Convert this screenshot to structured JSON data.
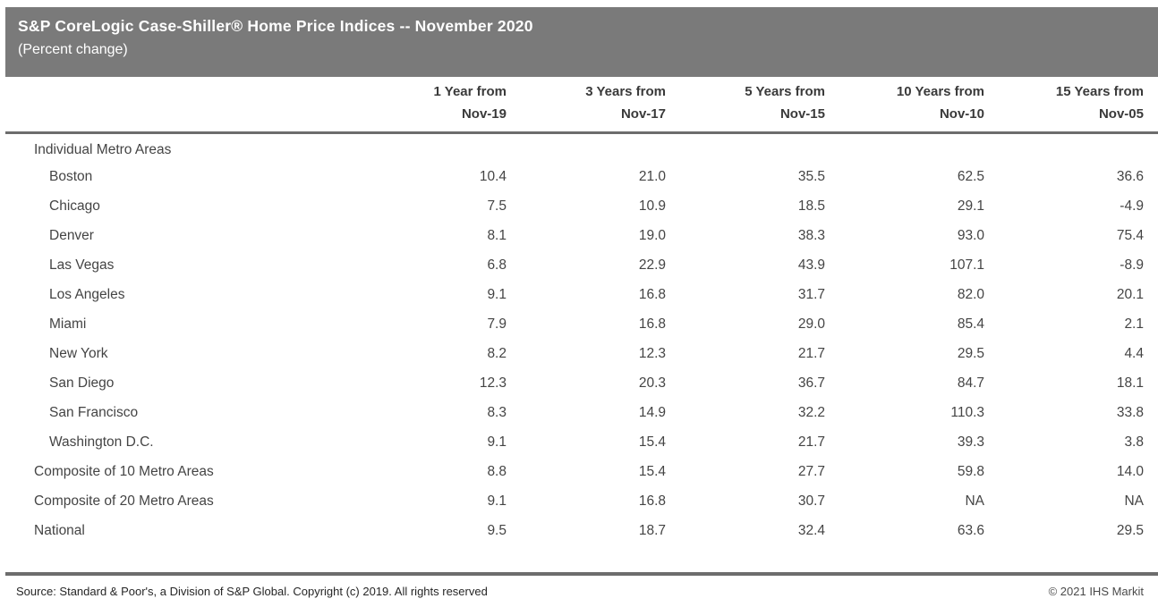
{
  "header": {
    "title": "S&P CoreLogic Case-Shiller® Home Price Indices -- November 2020",
    "subtitle": "(Percent change)"
  },
  "chart_data": {
    "type": "table",
    "title": "S&P CoreLogic Case-Shiller® Home Price Indices -- November 2020",
    "subtitle": "(Percent change)",
    "columns": [
      {
        "line1": "1 Year from",
        "line2": "Nov-19"
      },
      {
        "line1": "3 Years from",
        "line2": "Nov-17"
      },
      {
        "line1": "5 Years from",
        "line2": "Nov-15"
      },
      {
        "line1": "10 Years from",
        "line2": "Nov-10"
      },
      {
        "line1": "15 Years from",
        "line2": "Nov-05"
      }
    ],
    "rows": [
      {
        "label": "Individual Metro Areas",
        "heading": true,
        "indent": false,
        "values": null
      },
      {
        "label": "Boston",
        "heading": false,
        "indent": true,
        "values": [
          10.4,
          21.0,
          35.5,
          62.5,
          36.6
        ]
      },
      {
        "label": "Chicago",
        "heading": false,
        "indent": true,
        "values": [
          7.5,
          10.9,
          18.5,
          29.1,
          -4.9
        ]
      },
      {
        "label": "Denver",
        "heading": false,
        "indent": true,
        "values": [
          8.1,
          19.0,
          38.3,
          93.0,
          75.4
        ]
      },
      {
        "label": "Las Vegas",
        "heading": false,
        "indent": true,
        "values": [
          6.8,
          22.9,
          43.9,
          107.1,
          -8.9
        ]
      },
      {
        "label": "Los Angeles",
        "heading": false,
        "indent": true,
        "values": [
          9.1,
          16.8,
          31.7,
          82.0,
          20.1
        ]
      },
      {
        "label": "Miami",
        "heading": false,
        "indent": true,
        "values": [
          7.9,
          16.8,
          29.0,
          85.4,
          2.1
        ]
      },
      {
        "label": "New York",
        "heading": false,
        "indent": true,
        "values": [
          8.2,
          12.3,
          21.7,
          29.5,
          4.4
        ]
      },
      {
        "label": "San Diego",
        "heading": false,
        "indent": true,
        "values": [
          12.3,
          20.3,
          36.7,
          84.7,
          18.1
        ]
      },
      {
        "label": "San Francisco",
        "heading": false,
        "indent": true,
        "values": [
          8.3,
          14.9,
          32.2,
          110.3,
          33.8
        ]
      },
      {
        "label": "Washington D.C.",
        "heading": false,
        "indent": true,
        "values": [
          9.1,
          15.4,
          21.7,
          39.3,
          3.8
        ]
      },
      {
        "label": "Composite of 10 Metro Areas",
        "heading": false,
        "indent": false,
        "values": [
          8.8,
          15.4,
          27.7,
          59.8,
          14.0
        ]
      },
      {
        "label": "Composite of 20 Metro Areas",
        "heading": false,
        "indent": false,
        "values": [
          9.1,
          16.8,
          30.7,
          "NA",
          "NA"
        ]
      },
      {
        "label": "National",
        "heading": false,
        "indent": false,
        "values": [
          9.5,
          18.7,
          32.4,
          63.6,
          29.5
        ]
      }
    ]
  },
  "footer": {
    "source": "Source: Standard & Poor's, a Division of S&P Global. Copyright (c) 2019. All rights reserved",
    "copyright": "© 2021 IHS Markit"
  },
  "colors": {
    "header_bar": "#7a7a7a",
    "rule": "#6d6d6d",
    "header_bar_text": "#ffffff",
    "column_header_text": "#3a3a3a",
    "table_text": "#444444",
    "footer_text": "#262626",
    "footer_muted_text": "#4a4a4a"
  }
}
